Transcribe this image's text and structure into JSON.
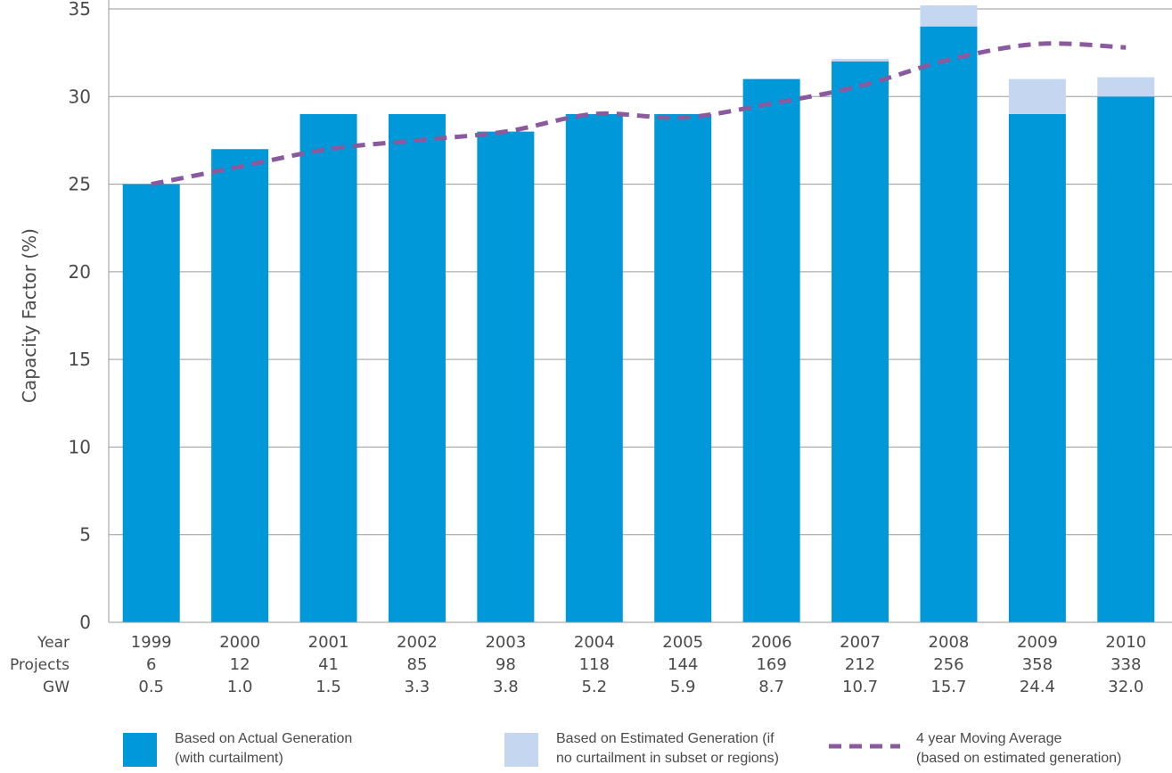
{
  "chart_data": {
    "type": "bar",
    "stacked": true,
    "ylabel": "Capacity Factor (%)",
    "ylim": [
      0,
      35
    ],
    "yticks": [
      0,
      5,
      10,
      15,
      20,
      25,
      30,
      35
    ],
    "grid": "horizontal",
    "categories": [
      "1999",
      "2000",
      "2001",
      "2002",
      "2003",
      "2004",
      "2005",
      "2006",
      "2007",
      "2008",
      "2009",
      "2010"
    ],
    "table_rows": [
      {
        "label": "Year",
        "values": [
          "1999",
          "2000",
          "2001",
          "2002",
          "2003",
          "2004",
          "2005",
          "2006",
          "2007",
          "2008",
          "2009",
          "2010"
        ]
      },
      {
        "label": "Projects",
        "values": [
          "6",
          "12",
          "41",
          "85",
          "98",
          "118",
          "144",
          "169",
          "212",
          "256",
          "358",
          "338"
        ]
      },
      {
        "label": "GW",
        "values": [
          "0.5",
          "1.0",
          "1.5",
          "3.3",
          "3.8",
          "5.2",
          "5.9",
          "8.7",
          "10.7",
          "15.7",
          "24.4",
          "32.0"
        ]
      }
    ],
    "series": [
      {
        "name": "Based on Actual Generation (with curtailment)",
        "kind": "bar",
        "color": "#0098d8",
        "values": [
          25,
          27,
          29,
          29,
          28,
          29,
          29,
          31,
          32,
          34,
          29,
          30
        ]
      },
      {
        "name": "Based on Estimated Generation (if no curtailment in subset or regions)",
        "kind": "bar-stacked",
        "color": "#c5d6f0",
        "values": [
          0,
          0,
          0,
          0,
          0,
          0,
          0,
          0,
          0.15,
          1.2,
          2,
          1.1
        ]
      },
      {
        "name": "4 year Moving Average (based on estimated generation)",
        "kind": "line-dashed",
        "color": "#8a5a9e",
        "values": [
          25,
          26,
          27,
          27.5,
          28,
          29,
          28.8,
          29.6,
          30.6,
          32.1,
          33,
          32.8
        ]
      }
    ],
    "legend": {
      "placement": "bottom",
      "items": [
        {
          "line1": "Based on Actual Generation",
          "line2": "(with curtailment)",
          "color": "#0098d8",
          "type": "box"
        },
        {
          "line1": "Based on Estimated Generation (if",
          "line2": "no curtailment in subset or regions)",
          "color": "#c5d6f0",
          "type": "box"
        },
        {
          "line1": "4 year Moving Average",
          "line2": "(based on estimated generation)",
          "color": "#8a5a9e",
          "type": "dash"
        }
      ]
    }
  }
}
